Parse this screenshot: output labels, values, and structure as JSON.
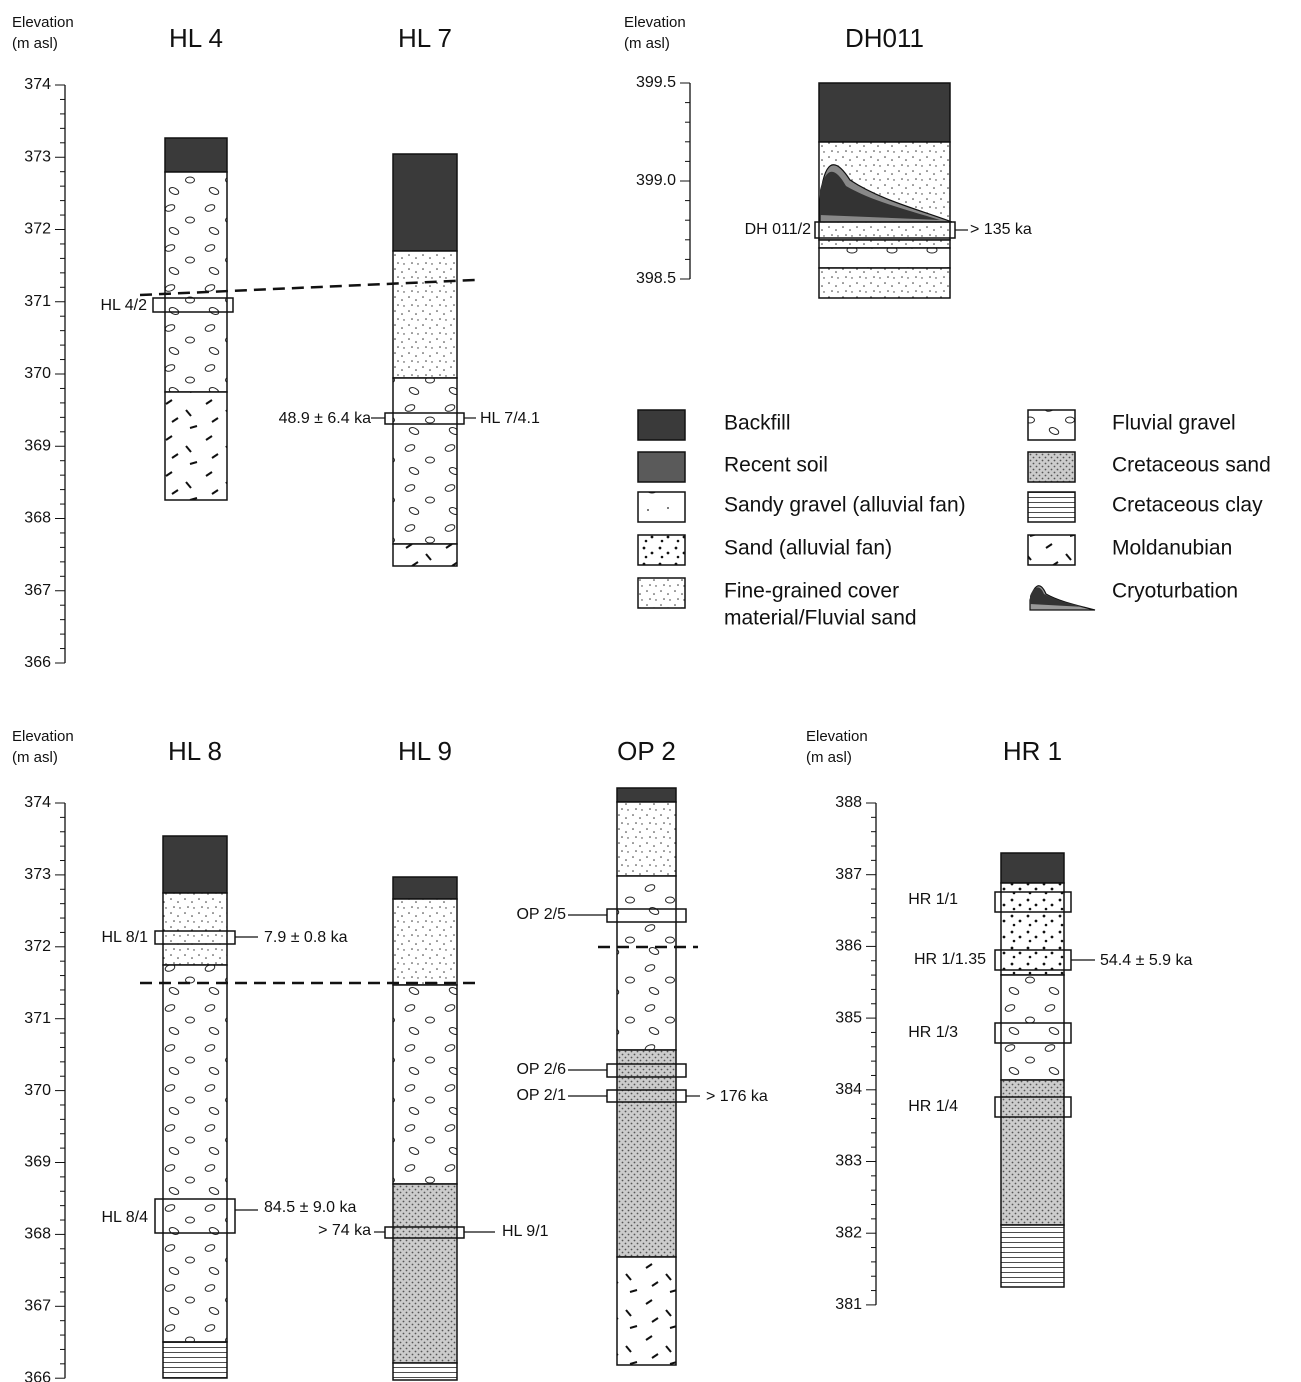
{
  "axes": [
    {
      "title": [
        "Elevation",
        "(m asl)"
      ],
      "ticks": [
        "374",
        "373",
        "372",
        "371",
        "370",
        "369",
        "368",
        "367",
        "366"
      ]
    },
    {
      "title": [
        "Elevation",
        "(m asl)"
      ],
      "ticks": [
        "399.5",
        "399.0",
        "398.5"
      ]
    },
    {
      "title": [
        "Elevation",
        "(m asl)"
      ],
      "ticks": [
        "374",
        "373",
        "372",
        "371",
        "370",
        "369",
        "368",
        "367",
        "366"
      ]
    },
    {
      "title": [
        "Elevation",
        "(m asl)"
      ],
      "ticks": [
        "388",
        "387",
        "386",
        "385",
        "384",
        "383",
        "382",
        "381"
      ]
    }
  ],
  "columns": [
    {
      "name": "HL 4",
      "labels": [
        "HL 4/2"
      ]
    },
    {
      "name": "HL 7",
      "labels": [
        "48.9 ± 6.4 ka",
        "HL 7/4.1"
      ]
    },
    {
      "name": "DH011",
      "labels": [
        "DH 011/2",
        "> 135 ka"
      ]
    },
    {
      "name": "HL 8",
      "labels": [
        "HL 8/1",
        "7.9 ± 0.8 ka",
        "HL 8/4",
        "84.5 ± 9.0 ka"
      ]
    },
    {
      "name": "HL 9",
      "labels": [
        "> 74 ka",
        "HL 9/1"
      ]
    },
    {
      "name": "OP 2",
      "labels": [
        "OP 2/5",
        "OP 2/6",
        "OP 2/1",
        "> 176 ka"
      ]
    },
    {
      "name": "HR 1",
      "labels": [
        "HR 1/1",
        "HR 1/1.35",
        "54.4 ± 5.9 ka",
        "HR 1/3",
        "HR 1/4"
      ]
    }
  ],
  "legend": [
    {
      "label": [
        "Backfill"
      ]
    },
    {
      "label": [
        "Recent soil"
      ]
    },
    {
      "label": [
        "Sandy gravel (alluvial fan)"
      ]
    },
    {
      "label": [
        "Sand (alluvial fan)"
      ]
    },
    {
      "label": [
        "Fine-grained cover",
        "material/Fluvial sand"
      ]
    },
    {
      "label": [
        "Fluvial gravel"
      ]
    },
    {
      "label": [
        "Cretaceous sand"
      ]
    },
    {
      "label": [
        "Cretaceous clay"
      ]
    },
    {
      "label": [
        "Moldanubian"
      ]
    },
    {
      "label": [
        "Cryoturbation"
      ]
    }
  ]
}
